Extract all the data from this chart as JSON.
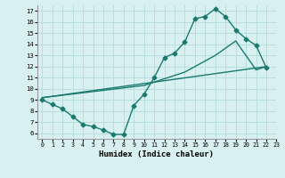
{
  "line1_x": [
    0,
    1,
    2,
    3,
    4,
    5,
    6,
    7,
    8,
    9,
    10,
    11,
    12,
    13,
    14,
    15,
    16,
    17,
    18,
    19,
    20,
    21,
    22
  ],
  "line1_y": [
    9.0,
    8.6,
    8.2,
    7.5,
    6.8,
    6.6,
    6.3,
    5.9,
    5.9,
    8.5,
    9.5,
    11.0,
    12.8,
    13.2,
    14.2,
    16.3,
    16.5,
    17.2,
    16.5,
    15.3,
    14.5,
    13.9,
    11.9
  ],
  "line2_x": [
    0,
    22
  ],
  "line2_y": [
    9.2,
    12.0
  ],
  "line3_x": [
    0,
    10,
    14,
    17,
    19,
    21,
    22
  ],
  "line3_y": [
    9.2,
    10.3,
    11.5,
    13.0,
    14.3,
    11.7,
    12.0
  ],
  "color": "#1a7a6e",
  "bg_color": "#d8f0f0",
  "grid_color": "#b8dede",
  "xlabel": "Humidex (Indice chaleur)",
  "xlim": [
    -0.5,
    23
  ],
  "ylim": [
    5.5,
    17.5
  ],
  "xticks": [
    0,
    1,
    2,
    3,
    4,
    5,
    6,
    7,
    8,
    9,
    10,
    11,
    12,
    13,
    14,
    15,
    16,
    17,
    18,
    19,
    20,
    21,
    22,
    23
  ],
  "yticks": [
    6,
    7,
    8,
    9,
    10,
    11,
    12,
    13,
    14,
    15,
    16,
    17
  ],
  "marker": "D",
  "markersize": 2.5,
  "linewidth": 1.0
}
